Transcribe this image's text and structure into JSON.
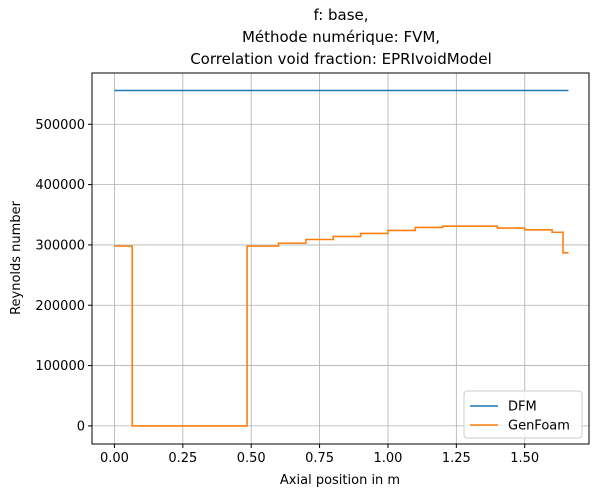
{
  "chart_data": {
    "type": "line",
    "title_lines": [
      "f: base,",
      "Méthode numérique: FVM,",
      "Correlation void fraction: EPRIvoidModel"
    ],
    "xlabel": "Axial position in m",
    "ylabel": "Reynolds number",
    "xlim": [
      -0.082,
      1.735
    ],
    "ylim": [
      -30000,
      585000
    ],
    "xticks": [
      0.0,
      0.25,
      0.5,
      0.75,
      1.0,
      1.25,
      1.5
    ],
    "xtick_labels": [
      "0.00",
      "0.25",
      "0.50",
      "0.75",
      "1.00",
      "1.25",
      "1.50"
    ],
    "yticks": [
      0,
      100000,
      200000,
      300000,
      400000,
      500000
    ],
    "ytick_labels": [
      "0",
      "100000",
      "200000",
      "300000",
      "400000",
      "500000"
    ],
    "grid": true,
    "legend_position": "lower-right",
    "series": [
      {
        "name": "DFM",
        "color": "#1f77b4",
        "step": false,
        "x": [
          0.0,
          1.66
        ],
        "y": [
          556000,
          556000
        ]
      },
      {
        "name": "GenFoam",
        "color": "#ff7f0e",
        "step": true,
        "x": [
          0.0,
          0.065,
          0.485,
          0.6,
          0.7,
          0.8,
          0.9,
          1.0,
          1.1,
          1.2,
          1.3,
          1.4,
          1.5,
          1.6,
          1.64,
          1.66
        ],
        "y": [
          298000,
          0,
          298000,
          303000,
          309000,
          314000,
          319000,
          324000,
          329000,
          331000,
          331000,
          328000,
          325000,
          321000,
          287000,
          287000
        ]
      }
    ]
  }
}
